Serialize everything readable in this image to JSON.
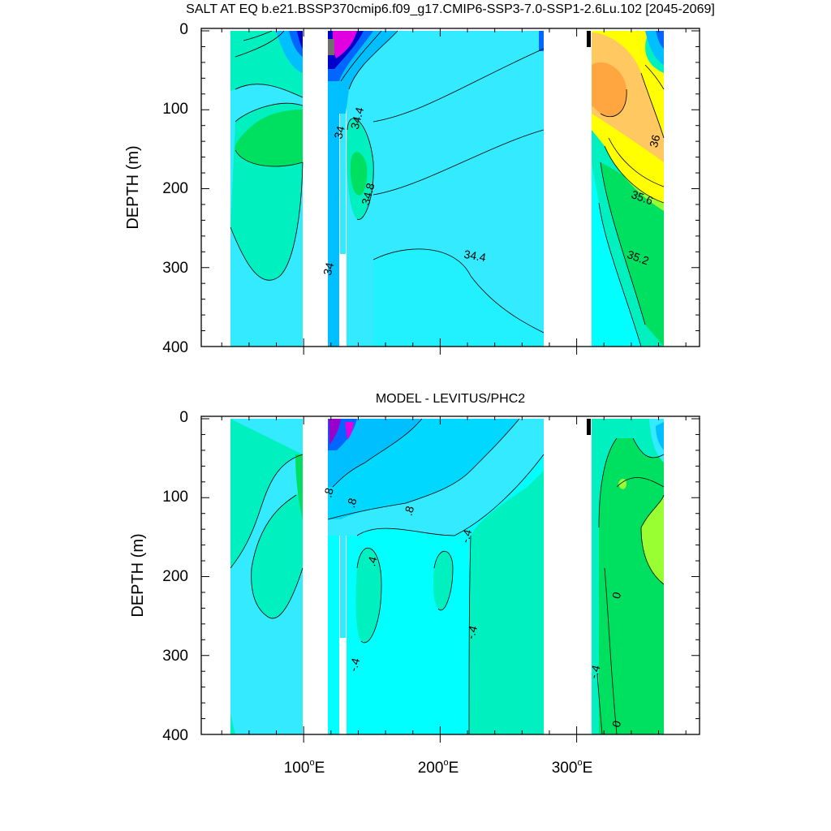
{
  "chart_data": [
    {
      "type": "heatmap",
      "title": "SALT AT EQ b.e21.BSSP370cmip6.f09_g17.CMIP6-SSP3-7.0-SSP1-2.6Lu.102 [2045-2069]",
      "ylabel": "DEPTH (m)",
      "xlim": [
        25,
        390
      ],
      "ylim": [
        400,
        0
      ],
      "y_ticks": [
        "0",
        "100",
        "200",
        "300",
        "400"
      ],
      "y_tick_values": [
        0,
        100,
        200,
        300,
        400
      ],
      "contour_labels": [
        {
          "text": "34.4",
          "x": 142,
          "y": 112
        },
        {
          "text": "34",
          "x": 129,
          "y": 130
        },
        {
          "text": "34.8",
          "x": 150,
          "y": 208
        },
        {
          "text": "34.4",
          "x": 225,
          "y": 290
        },
        {
          "text": "34",
          "x": 121,
          "y": 303
        },
        {
          "text": "36",
          "x": 360,
          "y": 141
        },
        {
          "text": "35.6",
          "x": 347,
          "y": 216
        },
        {
          "text": "35.2",
          "x": 344,
          "y": 292
        }
      ],
      "ocean_segments_lon": [
        [
          45,
          98
        ],
        [
          118,
          132
        ],
        [
          140,
          278
        ],
        [
          314,
          369
        ]
      ]
    },
    {
      "type": "heatmap",
      "title": "MODEL - LEVITUS/PHC2",
      "ylabel": "DEPTH (m)",
      "xlim": [
        25,
        390
      ],
      "ylim": [
        400,
        0
      ],
      "x_ticks": [
        {
          "num": "100",
          "deg": "o",
          "hemi": "E"
        },
        {
          "num": "200",
          "deg": "o",
          "hemi": "E"
        },
        {
          "num": "300",
          "deg": "o",
          "hemi": "E"
        }
      ],
      "x_tick_values": [
        100,
        200,
        300
      ],
      "y_ticks": [
        "0",
        "100",
        "200",
        "300",
        "400"
      ],
      "y_tick_values": [
        0,
        100,
        200,
        300,
        400
      ],
      "contour_labels": [
        {
          "text": ".8",
          "x": 121,
          "y": 95
        },
        {
          "text": ".8",
          "x": 138,
          "y": 108
        },
        {
          "text": ".8",
          "x": 180,
          "y": 118
        },
        {
          "text": "-.4",
          "x": 222,
          "y": 150
        },
        {
          "text": ".4",
          "x": 153,
          "y": 182
        },
        {
          "text": "-.4",
          "x": 226,
          "y": 272
        },
        {
          "text": "-.4",
          "x": 140,
          "y": 313
        },
        {
          "text": "0",
          "x": 332,
          "y": 225
        },
        {
          "text": "-.4",
          "x": 316,
          "y": 322
        },
        {
          "text": "0",
          "x": 332,
          "y": 388
        }
      ],
      "ocean_segments_lon": [
        [
          45,
          98
        ],
        [
          118,
          132
        ],
        [
          140,
          278
        ],
        [
          314,
          369
        ]
      ]
    }
  ],
  "colors": {
    "background_ocean": "#33eaff",
    "cyan": "#00ffff",
    "seagreen": "#00f0c0",
    "green": "#00e060",
    "light_blue": "#00bfff",
    "blue": "#0066ff",
    "dark_blue": "#0000cc",
    "magenta": "#e000e0",
    "yellow": "#ffff00",
    "orange": "#ffa640",
    "light_orange": "#ffc860",
    "lime": "#99ff33"
  }
}
